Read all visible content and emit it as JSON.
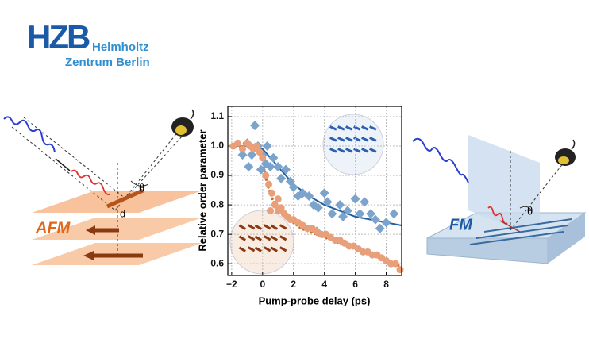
{
  "logo": {
    "mark": "HZB",
    "line1": "Helmholtz",
    "line2": "Zentrum Berlin"
  },
  "diagrams": {
    "afm_label": "AFM",
    "afm_theta": "θ",
    "afm_d": "d",
    "fm_label": "FM",
    "fm_theta": "θ"
  },
  "chart_data": {
    "type": "scatter",
    "x_label": "Pump-probe delay (ps)",
    "y_label": "Relative order parameter",
    "xlim": [
      -2.25,
      9
    ],
    "ylim": [
      0.56,
      1.135
    ],
    "xticks": [
      {
        "value": -2,
        "label": "−2"
      },
      0,
      2,
      4,
      6,
      8
    ],
    "yticks": [
      0.6,
      0.7,
      0.8,
      0.9,
      {
        "value": 1,
        "label": "1.0"
      },
      1.1
    ],
    "grid": true,
    "series": [
      {
        "style": "line",
        "color": "#1f5fa0",
        "x": [
          -2,
          -0.5,
          0,
          0.5,
          1,
          2,
          3,
          4,
          5,
          6,
          7,
          8,
          9
        ],
        "values": [
          1.0,
          1.0,
          0.99,
          0.96,
          0.93,
          0.87,
          0.83,
          0.8,
          0.78,
          0.76,
          0.75,
          0.74,
          0.73
        ]
      },
      {
        "style": "dotted",
        "color": "#d2691e",
        "x": [
          -2,
          -1,
          -0.3,
          0,
          0.3,
          0.7,
          1.5,
          2.5,
          4,
          5.5,
          7,
          8.5,
          9
        ],
        "values": [
          1.0,
          1.0,
          1.0,
          0.95,
          0.87,
          0.81,
          0.76,
          0.72,
          0.69,
          0.66,
          0.63,
          0.6,
          0.59
        ]
      },
      {
        "style": "diamond",
        "color": "#7ba3cc",
        "x": [
          -1.3,
          -1,
          -0.9,
          -0.7,
          -0.5,
          -0.3,
          -0.1,
          0,
          0.2,
          0.3,
          0.5,
          0.7,
          1,
          1.2,
          1.5,
          1.8,
          2,
          2.3,
          2.6,
          3,
          3.3,
          3.5,
          3.6,
          4,
          4.2,
          4.5,
          5,
          5.2,
          5.5,
          6,
          6.3,
          6.6,
          7,
          7.3,
          7.6,
          8,
          8.5
        ],
        "values": [
          0.97,
          1.01,
          0.93,
          0.97,
          1.07,
          1.0,
          0.92,
          0.97,
          0.94,
          1.0,
          0.93,
          0.96,
          0.93,
          0.89,
          0.92,
          0.88,
          0.86,
          0.83,
          0.84,
          0.83,
          0.8,
          0.71,
          0.79,
          0.84,
          0.81,
          0.77,
          0.8,
          0.76,
          0.78,
          0.82,
          0.77,
          0.81,
          0.77,
          0.75,
          0.72,
          0.74,
          0.77
        ]
      },
      {
        "style": "dot",
        "color": "#e8a07a",
        "x": [
          -1.9,
          -1.6,
          -1.3,
          -1.0,
          -0.8,
          -0.6,
          -0.4,
          -0.2,
          0,
          0.2,
          0.4,
          0.5,
          0.6,
          0.8,
          1.0,
          1.0,
          1.2,
          1.4,
          1.6,
          1.8,
          2.0,
          2.3,
          2.6,
          2.9,
          3.2,
          3.5,
          3.8,
          4.1,
          4.4,
          4.7,
          5.0,
          5.3,
          5.6,
          5.9,
          6.2,
          6.5,
          6.8,
          7.1,
          7.4,
          7.7,
          8.0,
          8.3,
          8.6,
          8.9
        ],
        "values": [
          1.0,
          1.01,
          0.99,
          1.01,
          1.0,
          0.99,
          1.0,
          0.98,
          0.96,
          0.9,
          0.87,
          0.78,
          0.84,
          0.8,
          0.82,
          0.78,
          0.79,
          0.77,
          0.76,
          0.75,
          0.75,
          0.74,
          0.73,
          0.72,
          0.72,
          0.71,
          0.7,
          0.7,
          0.69,
          0.68,
          0.68,
          0.67,
          0.66,
          0.66,
          0.65,
          0.64,
          0.64,
          0.63,
          0.63,
          0.62,
          0.61,
          0.6,
          0.6,
          0.58
        ]
      }
    ]
  }
}
